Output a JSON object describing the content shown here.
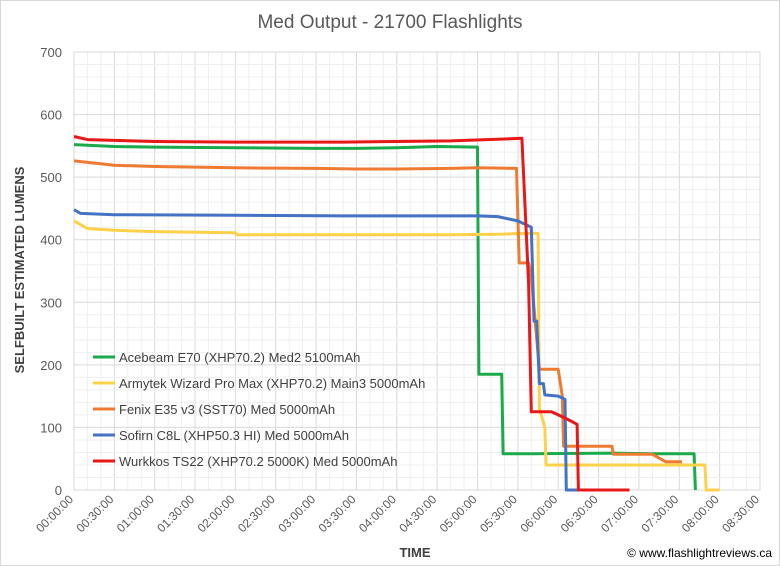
{
  "chart_data": {
    "type": "line",
    "title": "Med Output - 21700 Flashlights",
    "xlabel": "TIME",
    "ylabel": "SELFBUILT ESTIMATED LUMENS",
    "credit": "© www.flashlightreviews.ca",
    "ylim": [
      0,
      700
    ],
    "yticks": [
      0,
      100,
      200,
      300,
      400,
      500,
      600,
      700
    ],
    "xlim_minutes": [
      0,
      510
    ],
    "xtick_labels": [
      "00:00:00",
      "00:30:00",
      "01:00:00",
      "01:30:00",
      "02:00:00",
      "02:30:00",
      "03:00:00",
      "03:30:00",
      "04:00:00",
      "04:30:00",
      "05:00:00",
      "05:30:00",
      "06:00:00",
      "06:30:00",
      "07:00:00",
      "07:30:00",
      "08:00:00",
      "08:30:00"
    ],
    "grid": true,
    "legend_position": "lower-left",
    "series": [
      {
        "name": "Acebeam E70 (XHP70.2) Med2 5100mAh",
        "color": "#1aaa4a",
        "points": [
          [
            0,
            552
          ],
          [
            30,
            549
          ],
          [
            60,
            548
          ],
          [
            120,
            547
          ],
          [
            180,
            546
          ],
          [
            210,
            546
          ],
          [
            240,
            547
          ],
          [
            270,
            549
          ],
          [
            300,
            548
          ],
          [
            301,
            185
          ],
          [
            318,
            185
          ],
          [
            319,
            58
          ],
          [
            340,
            58
          ],
          [
            400,
            59
          ],
          [
            430,
            58
          ],
          [
            461,
            58
          ],
          [
            462,
            0
          ]
        ]
      },
      {
        "name": "Armytek Wizard Pro Max (XHP70.2) Main3 5000mAh",
        "color": "#ffd04a",
        "points": [
          [
            0,
            430
          ],
          [
            10,
            418
          ],
          [
            30,
            415
          ],
          [
            60,
            413
          ],
          [
            120,
            411
          ],
          [
            121,
            408
          ],
          [
            200,
            408
          ],
          [
            280,
            408
          ],
          [
            320,
            409
          ],
          [
            330,
            410
          ],
          [
            345,
            410
          ],
          [
            346,
            130
          ],
          [
            350,
            100
          ],
          [
            351,
            40
          ],
          [
            420,
            40
          ],
          [
            469,
            40
          ],
          [
            470,
            0
          ],
          [
            480,
            0
          ]
        ]
      },
      {
        "name": "Fenix E35 v3 (SST70) Med 5000mAh",
        "color": "#ef7a32",
        "points": [
          [
            0,
            526
          ],
          [
            30,
            519
          ],
          [
            60,
            517
          ],
          [
            120,
            515
          ],
          [
            180,
            514
          ],
          [
            210,
            513
          ],
          [
            240,
            513
          ],
          [
            280,
            514
          ],
          [
            300,
            515
          ],
          [
            329,
            514
          ],
          [
            331,
            363
          ],
          [
            338,
            363
          ],
          [
            340,
            340
          ],
          [
            346,
            193
          ],
          [
            360,
            193
          ],
          [
            363,
            150
          ],
          [
            364,
            70
          ],
          [
            400,
            70
          ],
          [
            401,
            57
          ],
          [
            430,
            57
          ],
          [
            440,
            45
          ],
          [
            452,
            45
          ]
        ]
      },
      {
        "name": "Sofirn C8L (XHP50.3 HI) Med 5000mAh",
        "color": "#4472c4",
        "points": [
          [
            0,
            448
          ],
          [
            5,
            442
          ],
          [
            30,
            440
          ],
          [
            120,
            439
          ],
          [
            200,
            438
          ],
          [
            260,
            438
          ],
          [
            300,
            438
          ],
          [
            315,
            437
          ],
          [
            330,
            430
          ],
          [
            340,
            420
          ],
          [
            342,
            270
          ],
          [
            344,
            270
          ],
          [
            346,
            170
          ],
          [
            349,
            170
          ],
          [
            350,
            152
          ],
          [
            360,
            150
          ],
          [
            365,
            145
          ],
          [
            366,
            0
          ],
          [
            398,
            0
          ]
        ]
      },
      {
        "name": "Wurkkos TS22 (XHP70.2 5000K) Med 5000mAh",
        "color": "#e81818",
        "points": [
          [
            0,
            565
          ],
          [
            10,
            560
          ],
          [
            60,
            557
          ],
          [
            120,
            556
          ],
          [
            200,
            556
          ],
          [
            240,
            557
          ],
          [
            280,
            558
          ],
          [
            320,
            561
          ],
          [
            333,
            562
          ],
          [
            338,
            330
          ],
          [
            340,
            125
          ],
          [
            355,
            125
          ],
          [
            365,
            115
          ],
          [
            374,
            105
          ],
          [
            375,
            0
          ],
          [
            413,
            0
          ]
        ]
      }
    ]
  }
}
